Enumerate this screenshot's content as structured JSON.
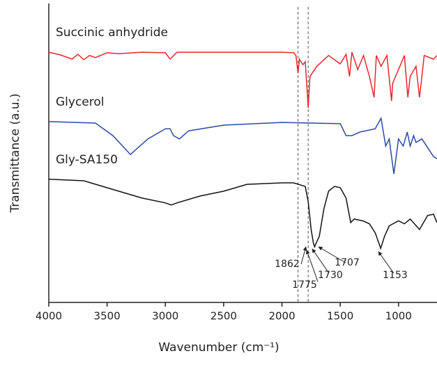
{
  "chart_data": {
    "type": "line",
    "xlabel": "Wavenumber (cm⁻¹)",
    "ylabel": "Transmittance (a.u.)",
    "xlim": [
      4000,
      670
    ],
    "ylim": [
      0,
      100
    ],
    "xticks": [
      4000,
      3500,
      3000,
      2500,
      2000,
      1500,
      1000
    ],
    "vlines": [
      1862,
      1775
    ],
    "annotations": [
      "1862",
      "1775",
      "1730",
      "1707",
      "1153"
    ],
    "series": [
      {
        "name": "Succinic anhydride",
        "color": "#e8262b",
        "x": [
          4000,
          3900,
          3800,
          3750,
          3700,
          3650,
          3600,
          3500,
          3400,
          3200,
          3000,
          2960,
          2900,
          2500,
          2000,
          1900,
          1880,
          1862,
          1850,
          1820,
          1800,
          1775,
          1760,
          1700,
          1600,
          1500,
          1450,
          1420,
          1400,
          1350,
          1300,
          1250,
          1210,
          1190,
          1150,
          1100,
          1060,
          1050,
          1000,
          950,
          920,
          900,
          850,
          820,
          800,
          780,
          700,
          670
        ],
        "values": [
          83.7,
          82.8,
          81.4,
          83,
          81.2,
          82.6,
          81.9,
          83.5,
          83.2,
          83.7,
          83.5,
          81.4,
          83.7,
          83.7,
          83.7,
          83.5,
          82.6,
          76.7,
          81.4,
          79.5,
          80.5,
          65.1,
          75.6,
          79,
          82.6,
          79.8,
          83,
          75.6,
          83.7,
          77.9,
          82.6,
          75.6,
          68.6,
          82.6,
          79,
          82.6,
          67.4,
          73.3,
          77.9,
          82.6,
          68.6,
          75.6,
          79,
          68.6,
          75.6,
          82.6,
          81.4,
          82.6
        ]
      },
      {
        "name": "Glycerol",
        "color": "#2c48a8",
        "x": [
          4000,
          3600,
          3450,
          3300,
          3150,
          3000,
          2960,
          2930,
          2880,
          2800,
          2500,
          2000,
          1500,
          1450,
          1400,
          1330,
          1200,
          1150,
          1110,
          1080,
          1040,
          1000,
          960,
          925,
          900,
          870,
          850,
          800,
          700,
          670
        ],
        "values": [
          60.5,
          60,
          55.8,
          49.5,
          54.7,
          58.1,
          58.1,
          55.8,
          54.7,
          57.4,
          59.3,
          60.2,
          59.8,
          55.8,
          55.8,
          57,
          58.1,
          61.6,
          52.3,
          54.7,
          43,
          54.7,
          52.3,
          57,
          52.3,
          55.8,
          53.5,
          54.7,
          48.8,
          48.1
        ]
      },
      {
        "name": "Gly-SA150",
        "color": "#111111",
        "x": [
          4000,
          3700,
          3400,
          3200,
          3000,
          2950,
          2900,
          2700,
          2500,
          2300,
          2000,
          1900,
          1800,
          1775,
          1750,
          1730,
          1720,
          1707,
          1680,
          1640,
          1600,
          1550,
          1500,
          1450,
          1410,
          1380,
          1300,
          1250,
          1200,
          1153,
          1120,
          1080,
          1000,
          950,
          900,
          820,
          750,
          700,
          670
        ],
        "values": [
          41.2,
          40.7,
          37.2,
          34.9,
          33.3,
          32.6,
          33.3,
          35.6,
          37.2,
          39.5,
          40,
          40,
          38.8,
          33.7,
          24.4,
          19.8,
          18.6,
          19.8,
          22.1,
          31.4,
          37.2,
          38.8,
          38.4,
          34.9,
          26.7,
          27.9,
          27.2,
          26.3,
          23.3,
          18.1,
          22.1,
          25.6,
          27.3,
          26.3,
          27.9,
          24.4,
          29.1,
          29.5,
          26.7
        ]
      }
    ]
  }
}
